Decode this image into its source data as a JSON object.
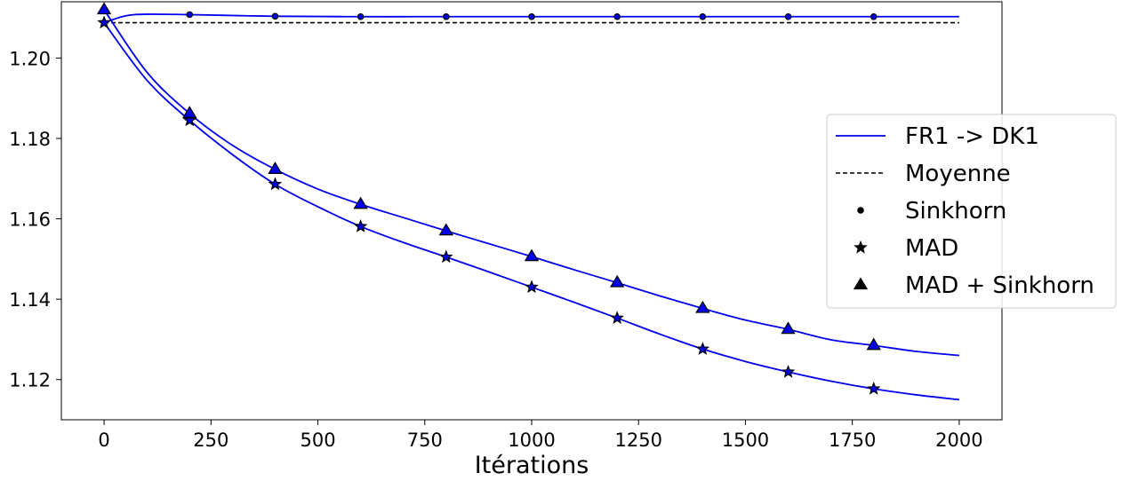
{
  "chart_data": {
    "type": "line",
    "title": "",
    "xlabel": "Itérations",
    "ylabel": "",
    "xlim": [
      -100,
      2100
    ],
    "ylim": [
      1.11,
      1.214
    ],
    "xticks": [
      0,
      250,
      500,
      750,
      1000,
      1250,
      1500,
      1750,
      2000
    ],
    "yticks": [
      1.12,
      1.14,
      1.16,
      1.18,
      1.2
    ],
    "ytick_labels": [
      "1.12",
      "1.14",
      "1.16",
      "1.18",
      "1.20"
    ],
    "grid": false,
    "legend_position": "center-right",
    "color": "#0000ee",
    "legend": [
      {
        "label": "FR1 -> DK1",
        "kind": "line"
      },
      {
        "label": "Moyenne",
        "kind": "dashed"
      },
      {
        "label": "Sinkhorn",
        "kind": "dot"
      },
      {
        "label": "MAD",
        "kind": "star"
      },
      {
        "label": "MAD + Sinkhorn",
        "kind": "triangle"
      }
    ],
    "series": [
      {
        "name": "Moyenne",
        "style": "dashed",
        "x": [
          0,
          2000
        ],
        "y": [
          1.2088,
          1.2088
        ]
      },
      {
        "name": "Sinkhorn",
        "style": "line",
        "marker": "dot",
        "x": [
          0,
          50,
          100,
          200,
          400,
          600,
          800,
          1000,
          1200,
          1400,
          1600,
          1800,
          2000
        ],
        "y": [
          1.2088,
          1.2105,
          1.2109,
          1.2108,
          1.2104,
          1.2103,
          1.2103,
          1.2103,
          1.2103,
          1.2103,
          1.2103,
          1.2103,
          1.2103
        ],
        "marker_x": [
          200,
          400,
          600,
          800,
          1000,
          1200,
          1400,
          1600,
          1800
        ]
      },
      {
        "name": "MAD",
        "style": "line",
        "marker": "star",
        "x": [
          0,
          100,
          200,
          300,
          400,
          500,
          600,
          700,
          800,
          900,
          1000,
          1100,
          1200,
          1300,
          1400,
          1500,
          1600,
          1700,
          1800,
          1900,
          2000
        ],
        "y": [
          1.2088,
          1.1945,
          1.1845,
          1.176,
          1.1686,
          1.163,
          1.1581,
          1.1541,
          1.1505,
          1.1468,
          1.143,
          1.1392,
          1.1353,
          1.1313,
          1.1276,
          1.1245,
          1.1219,
          1.1196,
          1.1177,
          1.1162,
          1.115
        ],
        "marker_x": [
          0,
          200,
          400,
          600,
          800,
          1000,
          1200,
          1400,
          1600,
          1800
        ]
      },
      {
        "name": "MAD + Sinkhorn",
        "style": "line",
        "marker": "triangle",
        "x": [
          0,
          100,
          200,
          300,
          400,
          500,
          600,
          700,
          800,
          900,
          1000,
          1100,
          1200,
          1300,
          1400,
          1500,
          1600,
          1700,
          1800,
          1900,
          2000
        ],
        "y": [
          1.212,
          1.1965,
          1.1862,
          1.1783,
          1.1723,
          1.1674,
          1.1636,
          1.1603,
          1.157,
          1.1538,
          1.1506,
          1.1473,
          1.1441,
          1.1408,
          1.1377,
          1.1348,
          1.1325,
          1.1299,
          1.1285,
          1.127,
          1.126
        ],
        "marker_x": [
          0,
          200,
          400,
          600,
          800,
          1000,
          1200,
          1400,
          1600,
          1800
        ]
      }
    ]
  }
}
